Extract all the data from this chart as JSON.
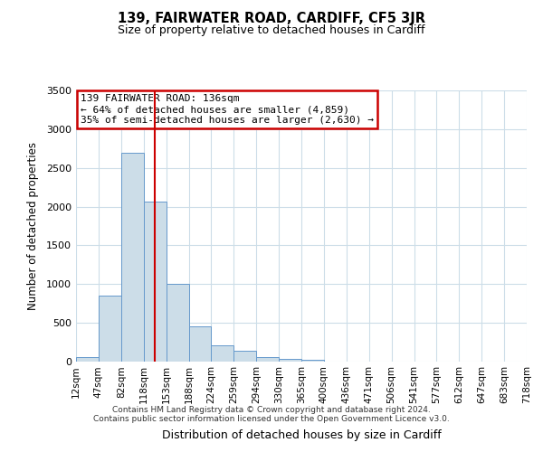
{
  "title": "139, FAIRWATER ROAD, CARDIFF, CF5 3JR",
  "subtitle": "Size of property relative to detached houses in Cardiff",
  "xlabel": "Distribution of detached houses by size in Cardiff",
  "ylabel": "Number of detached properties",
  "bar_values": [
    55,
    850,
    2700,
    2060,
    1000,
    460,
    210,
    145,
    55,
    30,
    20,
    5,
    2,
    1,
    1,
    1,
    1
  ],
  "bin_labels": [
    "12sqm",
    "47sqm",
    "82sqm",
    "118sqm",
    "153sqm",
    "188sqm",
    "224sqm",
    "259sqm",
    "294sqm",
    "330sqm",
    "365sqm",
    "400sqm",
    "436sqm",
    "471sqm",
    "506sqm",
    "541sqm",
    "577sqm",
    "612sqm",
    "647sqm",
    "683sqm",
    "718sqm"
  ],
  "bar_color": "#ccdde8",
  "bar_edge_color": "#6699cc",
  "vline_color": "#cc0000",
  "vline_x": 3.5,
  "annotation_box_text": "139 FAIRWATER ROAD: 136sqm\n← 64% of detached houses are smaller (4,859)\n35% of semi-detached houses are larger (2,630) →",
  "annotation_box_facecolor": "white",
  "annotation_box_edgecolor": "#cc0000",
  "ylim": [
    0,
    3500
  ],
  "yticks": [
    0,
    500,
    1000,
    1500,
    2000,
    2500,
    3000,
    3500
  ],
  "footer_line1": "Contains HM Land Registry data © Crown copyright and database right 2024.",
  "footer_line2": "Contains public sector information licensed under the Open Government Licence v3.0.",
  "background_color": "#ffffff",
  "grid_color": "#ccdde8",
  "num_bars": 17,
  "num_xticks": 21
}
